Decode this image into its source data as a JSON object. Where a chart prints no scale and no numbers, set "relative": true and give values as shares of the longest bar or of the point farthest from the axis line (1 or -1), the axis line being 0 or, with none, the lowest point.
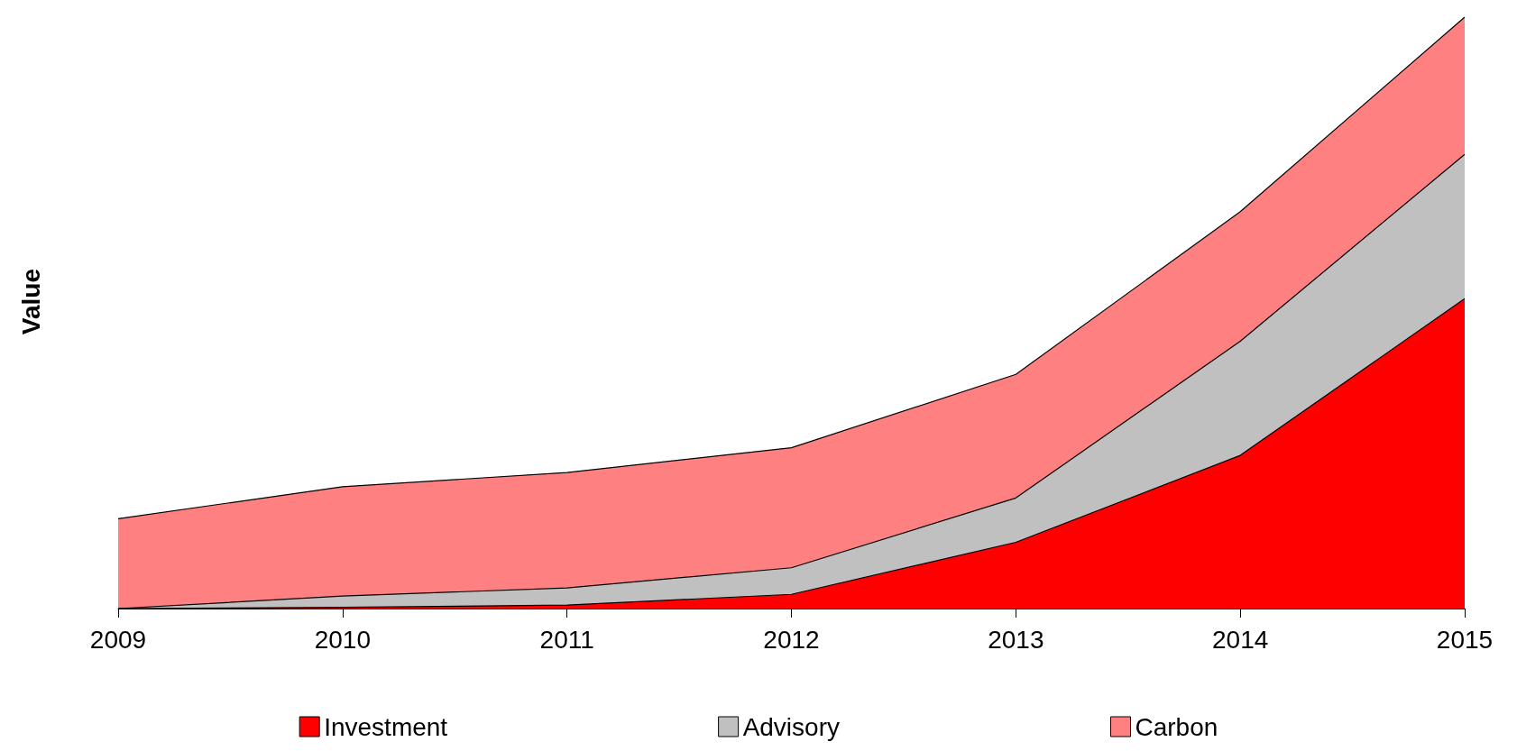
{
  "chart_data": {
    "type": "area",
    "ylabel": "Value",
    "relative": true,
    "stacked": true,
    "legend": "bottom",
    "categories": [
      "2009",
      "2010",
      "2011",
      "2012",
      "2013",
      "2014",
      "2015"
    ],
    "series": [
      {
        "name": "Investment",
        "color": "#ff0000",
        "values": [
          0,
          0.002,
          0.006,
          0.024,
          0.112,
          0.259,
          0.524
        ]
      },
      {
        "name": "Advisory",
        "color": "#c0c0c0",
        "values": [
          0,
          0.019,
          0.029,
          0.045,
          0.075,
          0.193,
          0.244
        ]
      },
      {
        "name": "Carbon",
        "color": "#ff8080",
        "values": [
          0.152,
          0.185,
          0.195,
          0.203,
          0.209,
          0.219,
          0.232
        ]
      }
    ]
  }
}
